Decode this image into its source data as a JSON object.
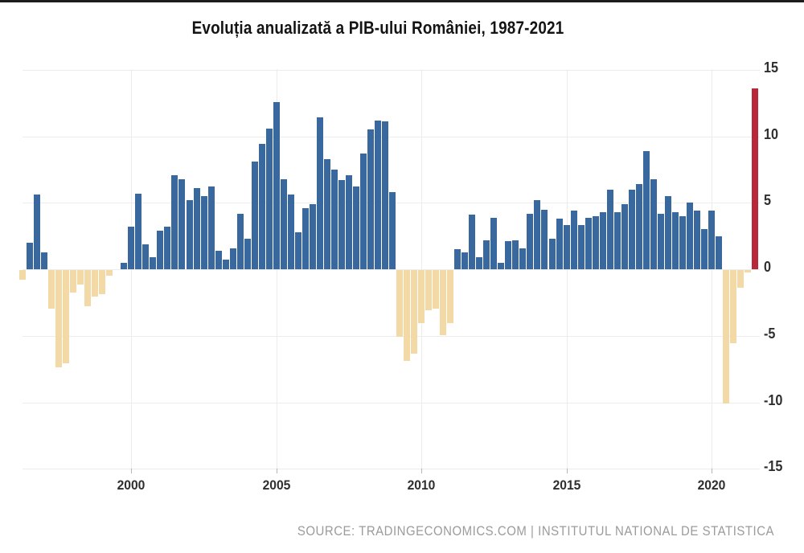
{
  "page": {
    "source_note": "SOURCE: TRADINGECONOMICS.COM | INSTITUTUL NATIONAL DE STATISTICA"
  },
  "chart_data": {
    "type": "bar",
    "title": "Evoluția anualizată a PIB-ului României, 1987-2021",
    "xlabel": "",
    "ylabel": "",
    "ylim": [
      -15,
      15
    ],
    "grid": true,
    "y_axis_side": "right",
    "y_ticks": [
      15,
      10,
      5,
      0,
      -5,
      -10,
      -15
    ],
    "x_tick_labels": [
      "2000",
      "2005",
      "2010",
      "2015",
      "2020"
    ],
    "x_tick_indices": [
      15,
      35,
      55,
      75,
      95
    ],
    "values": [
      -0.7,
      2.0,
      5.6,
      1.3,
      -2.9,
      -7.3,
      -7.0,
      -1.7,
      -1.1,
      -2.7,
      -2.0,
      -1.8,
      -0.4,
      0.0,
      0.5,
      3.2,
      5.7,
      1.9,
      0.9,
      2.9,
      3.2,
      7.1,
      6.8,
      5.2,
      6.1,
      5.5,
      6.2,
      1.4,
      0.7,
      1.6,
      4.2,
      2.3,
      8.1,
      9.4,
      10.6,
      12.6,
      6.8,
      5.6,
      2.8,
      4.6,
      4.9,
      11.4,
      8.3,
      7.5,
      6.7,
      7.1,
      6.2,
      8.7,
      10.5,
      11.2,
      11.1,
      5.8,
      -5.0,
      -6.8,
      -6.3,
      -4.0,
      -3.0,
      -2.9,
      -4.9,
      -4.0,
      1.5,
      1.3,
      4.1,
      0.9,
      2.2,
      3.9,
      0.5,
      2.1,
      2.2,
      1.6,
      4.2,
      5.2,
      4.5,
      2.3,
      3.8,
      3.3,
      4.4,
      3.3,
      3.9,
      4.0,
      4.3,
      6.0,
      4.3,
      4.9,
      6.0,
      6.4,
      8.9,
      6.8,
      4.2,
      5.5,
      4.3,
      4.0,
      5.0,
      4.4,
      3.0,
      4.4,
      2.5,
      -10.0,
      -5.5,
      -1.3,
      -0.2,
      13.6
    ],
    "highlight_last_bar": true,
    "legend": [],
    "colors": {
      "positive": "#38689e",
      "negative": "#f3d9a6",
      "highlight": "#b9283a",
      "grid": "#ececec",
      "tick": "#b5b5b5",
      "axis_text": "#2f2f2f",
      "title_text": "#141414",
      "source_text": "#9b9b9b",
      "background": "#ffffff"
    }
  }
}
